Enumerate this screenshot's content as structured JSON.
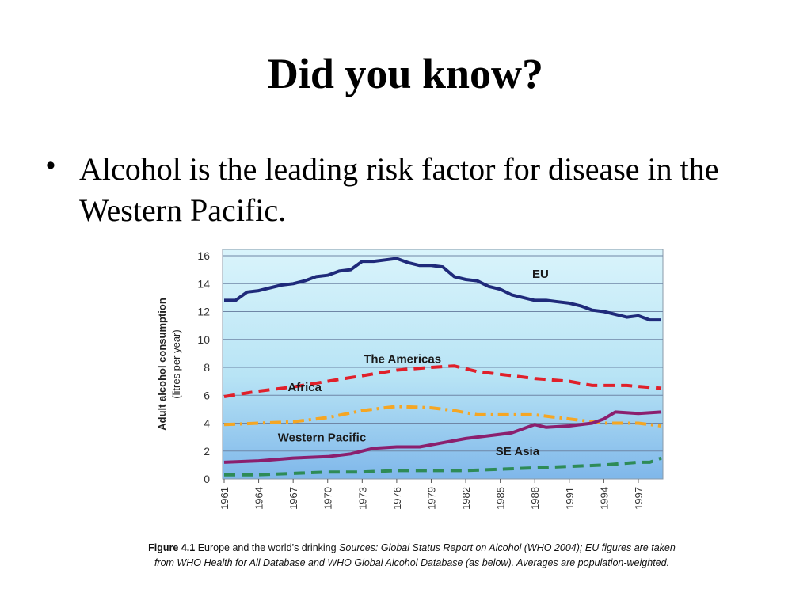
{
  "slide": {
    "title": "Did you know?",
    "bullet": "Alcohol is the leading risk factor for disease in the Western Pacific."
  },
  "caption": {
    "label": "Figure 4.1",
    "text": "Europe and the world’s drinking",
    "source": "Sources: Global Status Report on Alcohol (WHO 2004); EU figures are taken from WHO Health for All Database and WHO Global Alcohol Database (as below).  Averages are population-weighted."
  },
  "chart_data": {
    "type": "line",
    "ylabel": "Adult alcohol consumption (litres per year)",
    "ylim": [
      0,
      16
    ],
    "yticks": [
      0,
      2,
      4,
      6,
      8,
      10,
      12,
      14,
      16
    ],
    "xlim": [
      1961,
      1999
    ],
    "xticks": [
      "1961",
      "1964",
      "1967",
      "1970",
      "1973",
      "1976",
      "1979",
      "1982",
      "1985",
      "1988",
      "1991",
      "1994",
      "1997"
    ],
    "grid": true,
    "series": [
      {
        "name": "EU",
        "color": "#1f2a7a",
        "dash": "solid",
        "points": [
          [
            1961,
            12.8
          ],
          [
            1962,
            12.8
          ],
          [
            1963,
            13.4
          ],
          [
            1964,
            13.5
          ],
          [
            1965,
            13.7
          ],
          [
            1966,
            13.9
          ],
          [
            1967,
            14.0
          ],
          [
            1968,
            14.2
          ],
          [
            1969,
            14.5
          ],
          [
            1970,
            14.6
          ],
          [
            1971,
            14.9
          ],
          [
            1972,
            15.0
          ],
          [
            1973,
            15.6
          ],
          [
            1974,
            15.6
          ],
          [
            1975,
            15.7
          ],
          [
            1976,
            15.8
          ],
          [
            1977,
            15.5
          ],
          [
            1978,
            15.3
          ],
          [
            1979,
            15.3
          ],
          [
            1980,
            15.2
          ],
          [
            1981,
            14.5
          ],
          [
            1982,
            14.3
          ],
          [
            1983,
            14.2
          ],
          [
            1984,
            13.8
          ],
          [
            1985,
            13.6
          ],
          [
            1986,
            13.2
          ],
          [
            1987,
            13.0
          ],
          [
            1988,
            12.8
          ],
          [
            1989,
            12.8
          ],
          [
            1990,
            12.7
          ],
          [
            1991,
            12.6
          ],
          [
            1992,
            12.4
          ],
          [
            1993,
            12.1
          ],
          [
            1994,
            12.0
          ],
          [
            1995,
            11.8
          ],
          [
            1996,
            11.6
          ],
          [
            1997,
            11.7
          ],
          [
            1998,
            11.4
          ],
          [
            1999,
            11.4
          ]
        ]
      },
      {
        "name": "The Americas",
        "color": "#e0202a",
        "dash": "long-dash",
        "points": [
          [
            1961,
            5.9
          ],
          [
            1964,
            6.3
          ],
          [
            1967,
            6.6
          ],
          [
            1970,
            7.0
          ],
          [
            1973,
            7.4
          ],
          [
            1976,
            7.8
          ],
          [
            1979,
            8.0
          ],
          [
            1981,
            8.1
          ],
          [
            1983,
            7.7
          ],
          [
            1985,
            7.5
          ],
          [
            1988,
            7.2
          ],
          [
            1991,
            7.0
          ],
          [
            1993,
            6.7
          ],
          [
            1996,
            6.7
          ],
          [
            1999,
            6.5
          ]
        ]
      },
      {
        "name": "Africa",
        "color": "#f5a623",
        "dash": "dash-dot",
        "points": [
          [
            1961,
            3.9
          ],
          [
            1964,
            4.0
          ],
          [
            1967,
            4.1
          ],
          [
            1970,
            4.4
          ],
          [
            1973,
            4.9
          ],
          [
            1976,
            5.2
          ],
          [
            1979,
            5.1
          ],
          [
            1981,
            4.9
          ],
          [
            1983,
            4.6
          ],
          [
            1985,
            4.6
          ],
          [
            1988,
            4.6
          ],
          [
            1991,
            4.3
          ],
          [
            1994,
            4.0
          ],
          [
            1997,
            4.0
          ],
          [
            1999,
            3.8
          ]
        ]
      },
      {
        "name": "Western Pacific",
        "color": "#8b1f6e",
        "dash": "solid",
        "points": [
          [
            1961,
            1.2
          ],
          [
            1964,
            1.3
          ],
          [
            1967,
            1.5
          ],
          [
            1970,
            1.6
          ],
          [
            1972,
            1.8
          ],
          [
            1974,
            2.2
          ],
          [
            1976,
            2.3
          ],
          [
            1978,
            2.3
          ],
          [
            1980,
            2.6
          ],
          [
            1982,
            2.9
          ],
          [
            1984,
            3.1
          ],
          [
            1986,
            3.3
          ],
          [
            1988,
            3.9
          ],
          [
            1989,
            3.7
          ],
          [
            1991,
            3.8
          ],
          [
            1993,
            4.0
          ],
          [
            1994,
            4.3
          ],
          [
            1995,
            4.8
          ],
          [
            1997,
            4.7
          ],
          [
            1999,
            4.8
          ]
        ]
      },
      {
        "name": "SE Asia",
        "color": "#2e8b57",
        "dash": "long-dash",
        "points": [
          [
            1961,
            0.3
          ],
          [
            1964,
            0.3
          ],
          [
            1967,
            0.4
          ],
          [
            1970,
            0.5
          ],
          [
            1973,
            0.5
          ],
          [
            1976,
            0.6
          ],
          [
            1979,
            0.6
          ],
          [
            1982,
            0.6
          ],
          [
            1985,
            0.7
          ],
          [
            1988,
            0.8
          ],
          [
            1991,
            0.9
          ],
          [
            1994,
            1.0
          ],
          [
            1997,
            1.2
          ],
          [
            1998,
            1.2
          ],
          [
            1999,
            1.5
          ]
        ]
      }
    ],
    "labels": [
      "EU",
      "The Americas",
      "Africa",
      "Western Pacific",
      "SE Asia"
    ]
  }
}
